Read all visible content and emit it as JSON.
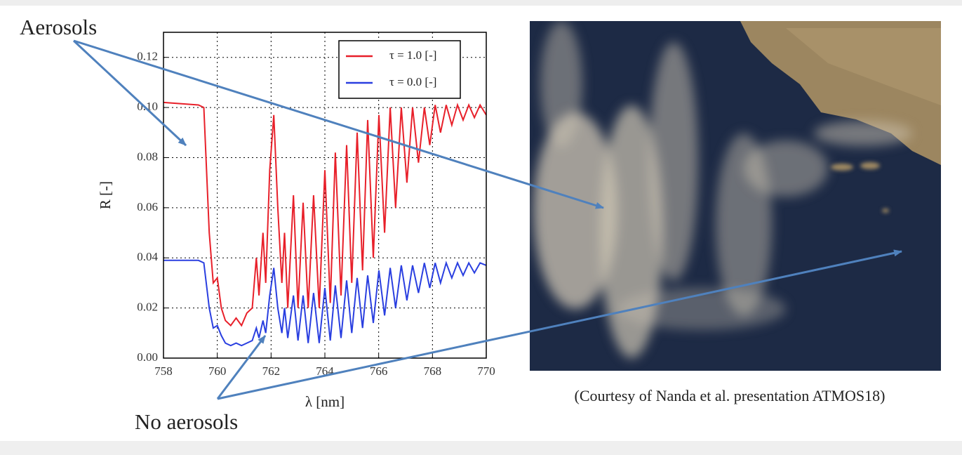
{
  "chart_data": {
    "type": "line",
    "x_label": "λ [nm]",
    "y_label": "R [-]",
    "xlim": [
      758,
      770
    ],
    "xticks": [
      758,
      760,
      762,
      764,
      766,
      768,
      770
    ],
    "ylim": [
      0,
      0.13
    ],
    "yticks": [
      {
        "value": 0,
        "label": "0.00"
      },
      {
        "value": 0.02,
        "label": "0.02"
      },
      {
        "value": 0.04,
        "label": "0.04"
      },
      {
        "value": 0.06,
        "label": "0.06"
      },
      {
        "value": 0.08,
        "label": "0.08"
      },
      {
        "value": 0.1,
        "label": "0.10"
      },
      {
        "value": 0.12,
        "label": "0.12"
      }
    ],
    "grid": true,
    "legend": "upper right",
    "x": [
      758,
      759.3,
      759.5,
      759.7,
      759.85,
      760.0,
      760.15,
      760.3,
      760.5,
      760.7,
      760.9,
      761.1,
      761.3,
      761.45,
      761.55,
      761.7,
      761.8,
      761.95,
      762.1,
      762.25,
      762.4,
      762.5,
      762.62,
      762.83,
      763.0,
      763.19,
      763.38,
      763.58,
      763.79,
      764.0,
      764.2,
      764.39,
      764.6,
      764.81,
      765.0,
      765.2,
      765.4,
      765.59,
      765.8,
      766.01,
      766.22,
      766.43,
      766.63,
      766.84,
      767.05,
      767.26,
      767.48,
      767.7,
      767.9,
      768.1,
      768.3,
      768.51,
      768.72,
      768.93,
      769.14,
      769.35,
      769.56,
      769.77,
      770
    ],
    "series": [
      {
        "name": "τ = 1.0 [-]",
        "color": "#e8202a",
        "values": [
          0.102,
          0.101,
          0.1,
          0.05,
          0.03,
          0.032,
          0.02,
          0.015,
          0.013,
          0.016,
          0.013,
          0.018,
          0.02,
          0.04,
          0.025,
          0.05,
          0.03,
          0.075,
          0.097,
          0.06,
          0.03,
          0.05,
          0.02,
          0.065,
          0.02,
          0.062,
          0.02,
          0.065,
          0.02,
          0.075,
          0.022,
          0.082,
          0.025,
          0.085,
          0.03,
          0.09,
          0.035,
          0.095,
          0.04,
          0.097,
          0.05,
          0.1,
          0.06,
          0.1,
          0.07,
          0.1,
          0.078,
          0.1,
          0.085,
          0.101,
          0.09,
          0.101,
          0.093,
          0.101,
          0.095,
          0.101,
          0.096,
          0.101,
          0.097
        ]
      },
      {
        "name": "τ = 0.0 [-]",
        "color": "#2a3fe0",
        "values": [
          0.039,
          0.039,
          0.038,
          0.02,
          0.012,
          0.013,
          0.009,
          0.006,
          0.005,
          0.006,
          0.005,
          0.006,
          0.007,
          0.012,
          0.008,
          0.015,
          0.01,
          0.025,
          0.036,
          0.02,
          0.01,
          0.02,
          0.008,
          0.025,
          0.007,
          0.025,
          0.006,
          0.026,
          0.006,
          0.028,
          0.007,
          0.029,
          0.008,
          0.031,
          0.01,
          0.032,
          0.012,
          0.033,
          0.014,
          0.035,
          0.017,
          0.036,
          0.02,
          0.037,
          0.023,
          0.037,
          0.026,
          0.038,
          0.028,
          0.038,
          0.03,
          0.038,
          0.032,
          0.038,
          0.033,
          0.038,
          0.034,
          0.038,
          0.037
        ]
      }
    ],
    "annotations": [
      "Aerosols",
      "No aerosols"
    ],
    "caption": "(Courtesy of Nanda et al. presentation ATMOS18)"
  }
}
